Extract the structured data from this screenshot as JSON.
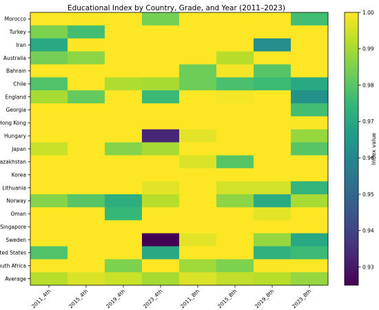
{
  "chart_data": {
    "type": "heatmap",
    "title": "Educational Index by Country, Grade, and Year (2011–2023)",
    "xlabel": "",
    "ylabel": "",
    "x_categories": [
      "2011_4th",
      "2015_4th",
      "2019_4th",
      "2023_4th",
      "2011_8th",
      "2015_8th",
      "2019_8th",
      "2023_8th"
    ],
    "y_categories": [
      "Morocco",
      "Turkey",
      "Iran",
      "Australia",
      "Bahrain",
      "Chile",
      "England",
      "Georgia",
      "Hong Kong",
      "Hungary",
      "Japan",
      "Kazakhstan",
      "Korea",
      "Lithuania",
      "Norway",
      "Oman",
      "Singapore",
      "Sweden",
      "United States",
      "South Africa",
      "Average"
    ],
    "values": [
      [
        1.0,
        1.0,
        1.0,
        0.984,
        1.0,
        1.0,
        1.0,
        0.977
      ],
      [
        0.985,
        0.977,
        1.0,
        1.0,
        1.0,
        1.0,
        1.0,
        1.0
      ],
      [
        0.97,
        1.0,
        1.0,
        1.0,
        1.0,
        1.0,
        0.962,
        1.0
      ],
      [
        0.984,
        0.987,
        1.0,
        1.0,
        1.0,
        0.992,
        1.0,
        1.0
      ],
      [
        1.0,
        1.0,
        1.0,
        1.0,
        0.983,
        0.999,
        0.98,
        1.0
      ],
      [
        0.979,
        1.0,
        0.991,
        0.99,
        0.983,
        0.978,
        0.976,
        0.97
      ],
      [
        0.99,
        0.982,
        1.0,
        0.976,
        1.0,
        0.999,
        1.0,
        0.963
      ],
      [
        1.0,
        1.0,
        1.0,
        1.0,
        1.0,
        1.0,
        1.0,
        0.977
      ],
      [
        1.0,
        1.0,
        1.0,
        1.0,
        1.0,
        1.0,
        1.0,
        1.0
      ],
      [
        1.0,
        1.0,
        1.0,
        0.933,
        0.997,
        1.0,
        1.0,
        0.988
      ],
      [
        0.994,
        1.0,
        0.986,
        0.99,
        1.0,
        1.0,
        1.0,
        0.98
      ],
      [
        1.0,
        1.0,
        1.0,
        1.0,
        0.996,
        0.98,
        1.0,
        1.0
      ],
      [
        1.0,
        1.0,
        1.0,
        1.0,
        1.0,
        1.0,
        1.0,
        1.0
      ],
      [
        1.0,
        1.0,
        1.0,
        0.997,
        1.0,
        0.995,
        0.995,
        0.974
      ],
      [
        0.986,
        0.98,
        0.972,
        0.992,
        1.0,
        0.987,
        0.971,
        0.99
      ],
      [
        1.0,
        1.0,
        0.975,
        1.0,
        1.0,
        1.0,
        0.997,
        1.0
      ],
      [
        1.0,
        1.0,
        1.0,
        1.0,
        1.0,
        1.0,
        1.0,
        1.0
      ],
      [
        1.0,
        1.0,
        1.0,
        0.925,
        0.997,
        1.0,
        0.988,
        0.97
      ],
      [
        0.979,
        1.0,
        1.0,
        0.97,
        1.0,
        1.0,
        0.973,
        0.976
      ],
      [
        1.0,
        1.0,
        0.985,
        1.0,
        0.989,
        0.985,
        1.0,
        1.0
      ],
      [
        0.992,
        0.996,
        0.994,
        0.99,
        0.996,
        0.993,
        0.992,
        0.988
      ]
    ],
    "colormap": "viridis",
    "vmin": 0.925,
    "vmax": 1.0,
    "colorbar": {
      "label": "Index value",
      "ticks": [
        "0.93",
        "0.94",
        "0.95",
        "0.96",
        "0.97",
        "0.98",
        "0.99",
        "1.00"
      ]
    }
  }
}
